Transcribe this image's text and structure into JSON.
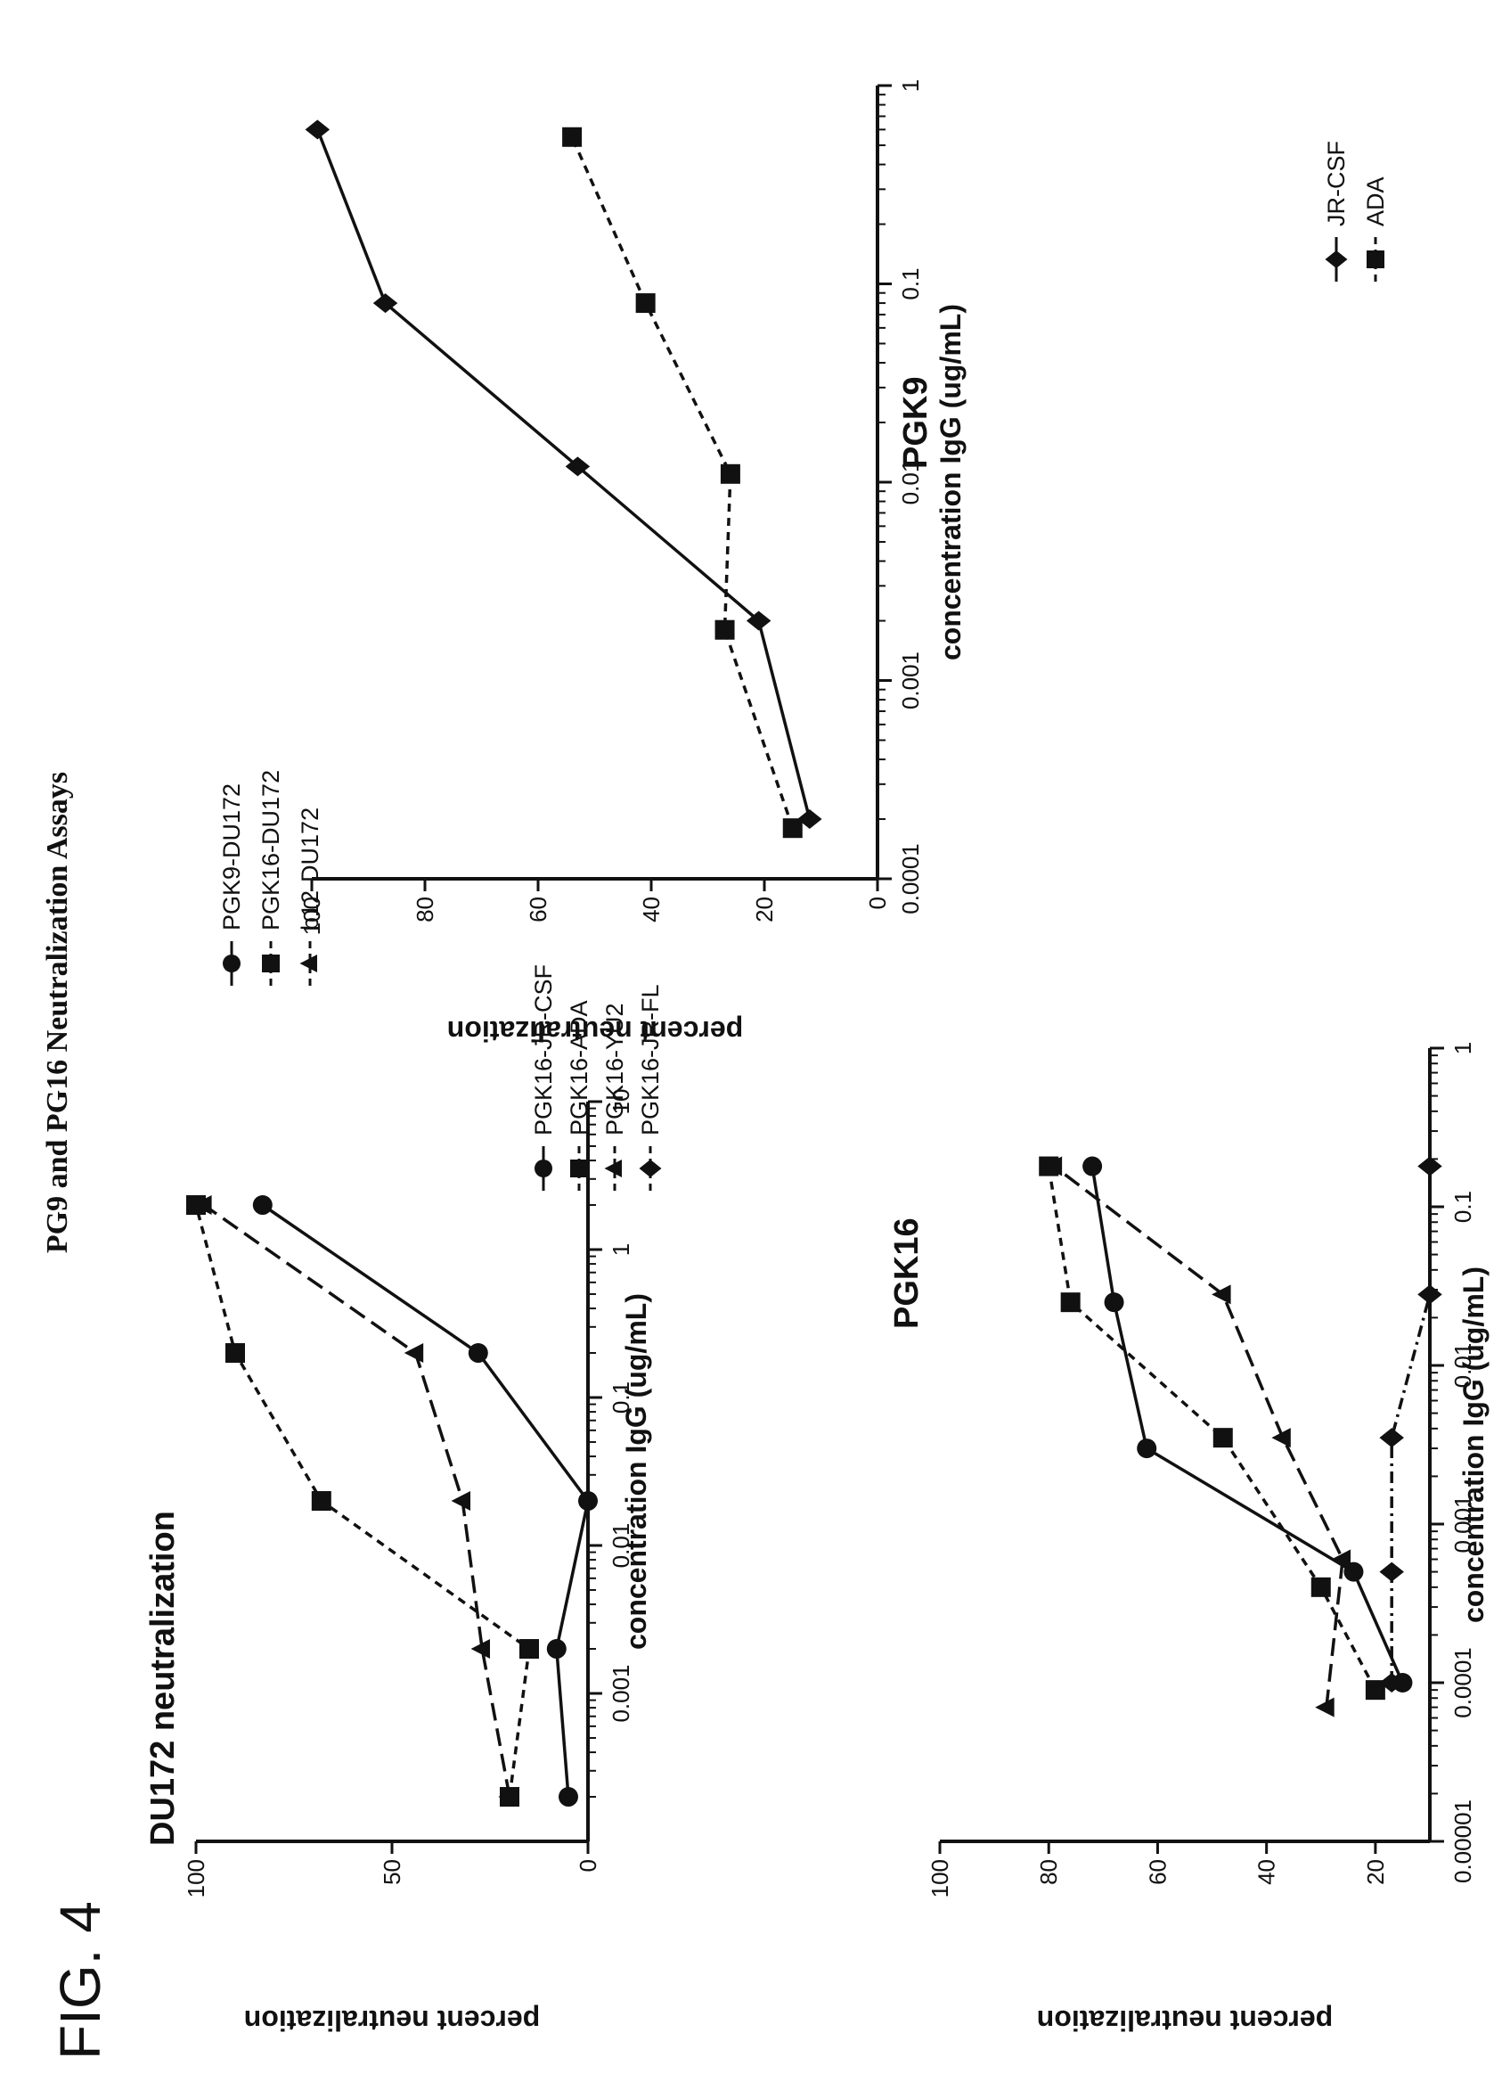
{
  "figure": {
    "label": "FIG. 4",
    "title": "PG9 and PG16 Neutralization Assays"
  },
  "chart_data": [
    {
      "id": "du172",
      "type": "line",
      "title": "DU172 neutralization",
      "xlabel": "concentration IgG (ug/mL)",
      "ylabel": "percent neutralization",
      "xscale": "log",
      "xlim": [
        0.0001,
        10
      ],
      "ylim": [
        0,
        100
      ],
      "xticks": [
        0.001,
        0.01,
        0.1,
        1,
        10
      ],
      "xtick_labels": [
        "0.001",
        "0.01",
        "0.1",
        "1",
        "10"
      ],
      "yticks": [
        0,
        50,
        100
      ],
      "ytick_labels": [
        "0",
        "50",
        "100"
      ],
      "legend_position": "right",
      "series": [
        {
          "name": "PGK9-DU172",
          "marker": "circle",
          "line": "solid",
          "x": [
            0.0002,
            0.002,
            0.02,
            0.2,
            2
          ],
          "y": [
            5,
            8,
            0,
            28,
            83
          ]
        },
        {
          "name": "PGK16-DU172",
          "marker": "square",
          "line": "short-dash",
          "x": [
            0.0002,
            0.002,
            0.02,
            0.2,
            2
          ],
          "y": [
            20,
            15,
            68,
            90,
            100
          ]
        },
        {
          "name": "b12-DU172",
          "marker": "triangle",
          "line": "long-dash",
          "x": [
            0.0002,
            0.002,
            0.02,
            0.2,
            2
          ],
          "y": [
            20,
            27,
            32,
            44,
            98
          ]
        }
      ]
    },
    {
      "id": "pgk9",
      "type": "line",
      "title": "PGK9",
      "xlabel": "concentration IgG (ug/mL)",
      "ylabel": "percent neutralization",
      "xscale": "log",
      "xlim": [
        0.0001,
        1
      ],
      "ylim": [
        0,
        100
      ],
      "xticks": [
        0.0001,
        0.001,
        0.01,
        0.1,
        1
      ],
      "xtick_labels": [
        "0.0001",
        "0.001",
        "0.01",
        "0.1",
        "1"
      ],
      "yticks": [
        0,
        20,
        40,
        60,
        80,
        100
      ],
      "ytick_labels": [
        "0",
        "20",
        "40",
        "60",
        "80",
        "100"
      ],
      "legend_position": "right",
      "series": [
        {
          "name": "JR-CSF",
          "marker": "diamond",
          "line": "solid",
          "x": [
            0.0002,
            0.002,
            0.012,
            0.08,
            0.6
          ],
          "y": [
            12,
            21,
            53,
            87,
            99
          ]
        },
        {
          "name": "ADA",
          "marker": "square",
          "line": "short-dash",
          "x": [
            0.00018,
            0.0018,
            0.011,
            0.08,
            0.55
          ],
          "y": [
            15,
            27,
            26,
            41,
            54
          ]
        }
      ]
    },
    {
      "id": "pgk16",
      "type": "line",
      "title": "PGK16",
      "xlabel": "concentration IgG (ug/mL)",
      "ylabel": "percent neutralization",
      "xscale": "log",
      "xlim": [
        1e-05,
        1
      ],
      "ylim": [
        10,
        100
      ],
      "xticks": [
        1e-05,
        0.0001,
        0.001,
        0.01,
        0.1,
        1
      ],
      "xtick_labels": [
        "0.00001",
        "0.0001",
        "0.001",
        "0.01",
        "0.1",
        "1"
      ],
      "yticks": [
        20,
        40,
        60,
        80,
        100
      ],
      "ytick_labels": [
        "20",
        "40",
        "60",
        "80",
        "100"
      ],
      "legend_position": "right",
      "series": [
        {
          "name": "PGK16-JR-CSF",
          "marker": "circle",
          "line": "solid",
          "x": [
            0.0001,
            0.0005,
            0.003,
            0.025,
            0.18
          ],
          "y": [
            15,
            24,
            62,
            68,
            72
          ]
        },
        {
          "name": "PGK16-ADA",
          "marker": "square",
          "line": "short-dash",
          "x": [
            9e-05,
            0.0004,
            0.0035,
            0.025,
            0.18
          ],
          "y": [
            20,
            30,
            48,
            76,
            80
          ]
        },
        {
          "name": "PGK16-YU2",
          "marker": "triangle",
          "line": "long-dash",
          "x": [
            7e-05,
            0.0006,
            0.0035,
            0.028,
            0.18
          ],
          "y": [
            29,
            26,
            37,
            48,
            79
          ]
        },
        {
          "name": "PGK16-JR-FL",
          "marker": "diamond",
          "line": "dash-dot",
          "x": [
            0.0001,
            0.0005,
            0.0035,
            0.028,
            0.18
          ],
          "y": [
            17,
            17,
            17,
            10,
            10
          ]
        }
      ]
    }
  ]
}
